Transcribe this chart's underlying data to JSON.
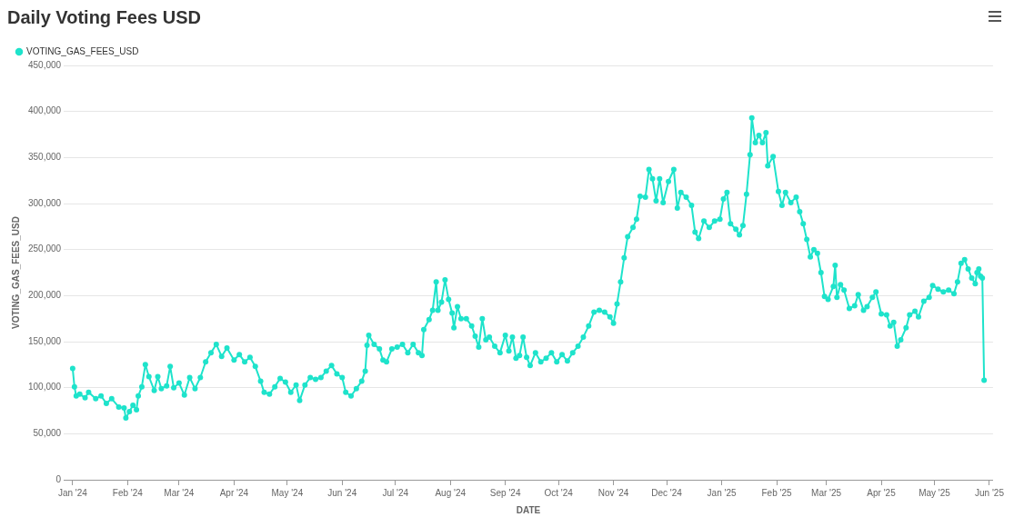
{
  "chart_data": {
    "type": "line",
    "title": "Daily Voting Fees USD",
    "xlabel": "DATE",
    "ylabel": "VOTING_GAS_FEES_USD",
    "x": [
      "2024-01-01",
      "2024-01-02",
      "2024-01-03",
      "2024-01-05",
      "2024-01-08",
      "2024-01-10",
      "2024-01-14",
      "2024-01-17",
      "2024-01-20",
      "2024-01-23",
      "2024-01-27",
      "2024-01-30",
      "2024-01-31",
      "2024-02-02",
      "2024-02-04",
      "2024-02-06",
      "2024-02-07",
      "2024-02-09",
      "2024-02-11",
      "2024-02-13",
      "2024-02-16",
      "2024-02-18",
      "2024-02-20",
      "2024-02-23",
      "2024-02-25",
      "2024-02-27",
      "2024-03-01",
      "2024-03-04",
      "2024-03-07",
      "2024-03-10",
      "2024-03-13",
      "2024-03-16",
      "2024-03-19",
      "2024-03-22",
      "2024-03-25",
      "2024-03-28",
      "2024-04-01",
      "2024-04-04",
      "2024-04-07",
      "2024-04-10",
      "2024-04-13",
      "2024-04-16",
      "2024-04-18",
      "2024-04-21",
      "2024-04-24",
      "2024-04-27",
      "2024-04-30",
      "2024-05-03",
      "2024-05-06",
      "2024-05-08",
      "2024-05-11",
      "2024-05-14",
      "2024-05-17",
      "2024-05-20",
      "2024-05-23",
      "2024-05-26",
      "2024-05-29",
      "2024-06-01",
      "2024-06-03",
      "2024-06-06",
      "2024-06-09",
      "2024-06-12",
      "2024-06-14",
      "2024-06-15",
      "2024-06-16",
      "2024-06-19",
      "2024-06-22",
      "2024-06-24",
      "2024-06-26",
      "2024-06-29",
      "2024-07-02",
      "2024-07-05",
      "2024-07-08",
      "2024-07-11",
      "2024-07-14",
      "2024-07-16",
      "2024-07-17",
      "2024-07-20",
      "2024-07-22",
      "2024-07-24",
      "2024-07-25",
      "2024-07-27",
      "2024-07-29",
      "2024-07-31",
      "2024-08-02",
      "2024-08-03",
      "2024-08-05",
      "2024-08-07",
      "2024-08-10",
      "2024-08-13",
      "2024-08-15",
      "2024-08-17",
      "2024-08-19",
      "2024-08-21",
      "2024-08-23",
      "2024-08-26",
      "2024-08-29",
      "2024-09-01",
      "2024-09-03",
      "2024-09-05",
      "2024-09-07",
      "2024-09-09",
      "2024-09-11",
      "2024-09-13",
      "2024-09-15",
      "2024-09-18",
      "2024-09-21",
      "2024-09-24",
      "2024-09-27",
      "2024-09-30",
      "2024-10-03",
      "2024-10-06",
      "2024-10-09",
      "2024-10-12",
      "2024-10-15",
      "2024-10-18",
      "2024-10-21",
      "2024-10-24",
      "2024-10-27",
      "2024-10-30",
      "2024-11-01",
      "2024-11-03",
      "2024-11-05",
      "2024-11-07",
      "2024-11-09",
      "2024-11-12",
      "2024-11-14",
      "2024-11-16",
      "2024-11-19",
      "2024-11-21",
      "2024-11-23",
      "2024-11-25",
      "2024-11-27",
      "2024-11-29",
      "2024-12-02",
      "2024-12-05",
      "2024-12-07",
      "2024-12-09",
      "2024-12-12",
      "2024-12-15",
      "2024-12-17",
      "2024-12-19",
      "2024-12-22",
      "2024-12-25",
      "2024-12-28",
      "2024-12-31",
      "2025-01-02",
      "2025-01-04",
      "2025-01-06",
      "2025-01-09",
      "2025-01-11",
      "2025-01-13",
      "2025-01-15",
      "2025-01-17",
      "2025-01-18",
      "2025-01-20",
      "2025-01-22",
      "2025-01-24",
      "2025-01-26",
      "2025-01-27",
      "2025-01-30",
      "2025-02-02",
      "2025-02-04",
      "2025-02-06",
      "2025-02-09",
      "2025-02-12",
      "2025-02-14",
      "2025-02-16",
      "2025-02-18",
      "2025-02-20",
      "2025-02-22",
      "2025-02-24",
      "2025-02-26",
      "2025-02-28",
      "2025-03-02",
      "2025-03-05",
      "2025-03-06",
      "2025-03-07",
      "2025-03-09",
      "2025-03-11",
      "2025-03-14",
      "2025-03-17",
      "2025-03-19",
      "2025-03-22",
      "2025-03-24",
      "2025-03-27",
      "2025-03-29",
      "2025-04-01",
      "2025-04-04",
      "2025-04-06",
      "2025-04-08",
      "2025-04-10",
      "2025-04-12",
      "2025-04-15",
      "2025-04-17",
      "2025-04-20",
      "2025-04-22",
      "2025-04-25",
      "2025-04-28",
      "2025-04-30",
      "2025-05-03",
      "2025-05-06",
      "2025-05-09",
      "2025-05-12",
      "2025-05-14",
      "2025-05-16",
      "2025-05-18",
      "2025-05-20",
      "2025-05-22",
      "2025-05-24",
      "2025-05-25",
      "2025-05-26",
      "2025-05-27",
      "2025-05-28",
      "2025-05-29"
    ],
    "series": [
      {
        "name": "VOTING_GAS_FEES_USD",
        "color": "#1ee3cb",
        "values": [
          121000,
          101000,
          91000,
          93000,
          89000,
          95000,
          88000,
          91000,
          83000,
          88000,
          79000,
          78000,
          67000,
          74000,
          81000,
          76000,
          91000,
          101000,
          125000,
          112000,
          97000,
          112000,
          99000,
          102000,
          123000,
          100000,
          105000,
          92000,
          111000,
          99000,
          111000,
          128000,
          138000,
          147000,
          134000,
          143000,
          130000,
          136000,
          128000,
          133000,
          123000,
          107000,
          95000,
          93000,
          101000,
          110000,
          106000,
          95000,
          103000,
          86000,
          103000,
          111000,
          109000,
          111000,
          118000,
          124000,
          115000,
          111000,
          95000,
          91000,
          99000,
          107000,
          118000,
          146000,
          157000,
          147000,
          142000,
          130000,
          128000,
          142000,
          144000,
          147000,
          138000,
          147000,
          138000,
          135000,
          163000,
          174000,
          184000,
          215000,
          184000,
          193000,
          217000,
          196000,
          181000,
          165000,
          188000,
          175000,
          175000,
          167000,
          156000,
          144000,
          175000,
          152000,
          155000,
          145000,
          138000,
          157000,
          140000,
          155000,
          132000,
          135000,
          155000,
          133000,
          124000,
          138000,
          128000,
          132000,
          138000,
          128000,
          136000,
          129000,
          138000,
          145000,
          155000,
          167000,
          182000,
          184000,
          182000,
          177000,
          170000,
          191000,
          215000,
          241000,
          264000,
          274000,
          283000,
          308000,
          307000,
          337000,
          327000,
          303000,
          327000,
          301000,
          324000,
          337000,
          295000,
          312000,
          307000,
          298000,
          269000,
          262000,
          281000,
          274000,
          281000,
          283000,
          305000,
          312000,
          278000,
          272000,
          266000,
          276000,
          310000,
          353000,
          393000,
          366000,
          374000,
          366000,
          377000,
          341000,
          351000,
          313000,
          298000,
          312000,
          301000,
          307000,
          291000,
          278000,
          261000,
          242000,
          250000,
          246000,
          225000,
          199000,
          196000,
          210000,
          233000,
          198000,
          212000,
          206000,
          186000,
          189000,
          201000,
          184000,
          188000,
          198000,
          204000,
          180000,
          179000,
          167000,
          171000,
          145000,
          152000,
          165000,
          179000,
          183000,
          177000,
          194000,
          198000,
          211000,
          207000,
          204000,
          206000,
          202000,
          215000,
          235000,
          239000,
          229000,
          219000,
          213000,
          225000,
          229000,
          221000,
          219000,
          108000
        ]
      }
    ],
    "xlim": [
      "2023-12-27",
      "2025-06-03"
    ],
    "xticks": [
      {
        "value": "2024-01-01",
        "label": "Jan '24"
      },
      {
        "value": "2024-02-01",
        "label": "Feb '24"
      },
      {
        "value": "2024-03-01",
        "label": "Mar '24"
      },
      {
        "value": "2024-04-01",
        "label": "Apr '24"
      },
      {
        "value": "2024-05-01",
        "label": "May '24"
      },
      {
        "value": "2024-06-01",
        "label": "Jun '24"
      },
      {
        "value": "2024-07-01",
        "label": "Jul '24"
      },
      {
        "value": "2024-08-01",
        "label": "Aug '24"
      },
      {
        "value": "2024-09-01",
        "label": "Sep '24"
      },
      {
        "value": "2024-10-01",
        "label": "Oct '24"
      },
      {
        "value": "2024-11-01",
        "label": "Nov '24"
      },
      {
        "value": "2024-12-01",
        "label": "Dec '24"
      },
      {
        "value": "2025-01-01",
        "label": "Jan '25"
      },
      {
        "value": "2025-02-01",
        "label": "Feb '25"
      },
      {
        "value": "2025-03-01",
        "label": "Mar '25"
      },
      {
        "value": "2025-04-01",
        "label": "Apr '25"
      },
      {
        "value": "2025-05-01",
        "label": "May '25"
      },
      {
        "value": "2025-06-01",
        "label": "Jun '25"
      }
    ],
    "ylim": [
      0,
      450000
    ],
    "yticks": [
      0,
      {
        "value": 50000,
        "label": "50,000"
      },
      {
        "value": 100000,
        "label": "100,000"
      },
      {
        "value": 150000,
        "label": "150,000"
      },
      {
        "value": 200000,
        "label": "200,000"
      },
      {
        "value": 250000,
        "label": "250,000"
      },
      {
        "value": 300000,
        "label": "300,000"
      },
      {
        "value": 350000,
        "label": "350,000"
      },
      {
        "value": 400000,
        "label": "400,000"
      },
      {
        "value": 450000,
        "label": "450,000"
      }
    ],
    "grid": "y",
    "legend": "top left",
    "marker": "circle",
    "line_style": "solid"
  }
}
